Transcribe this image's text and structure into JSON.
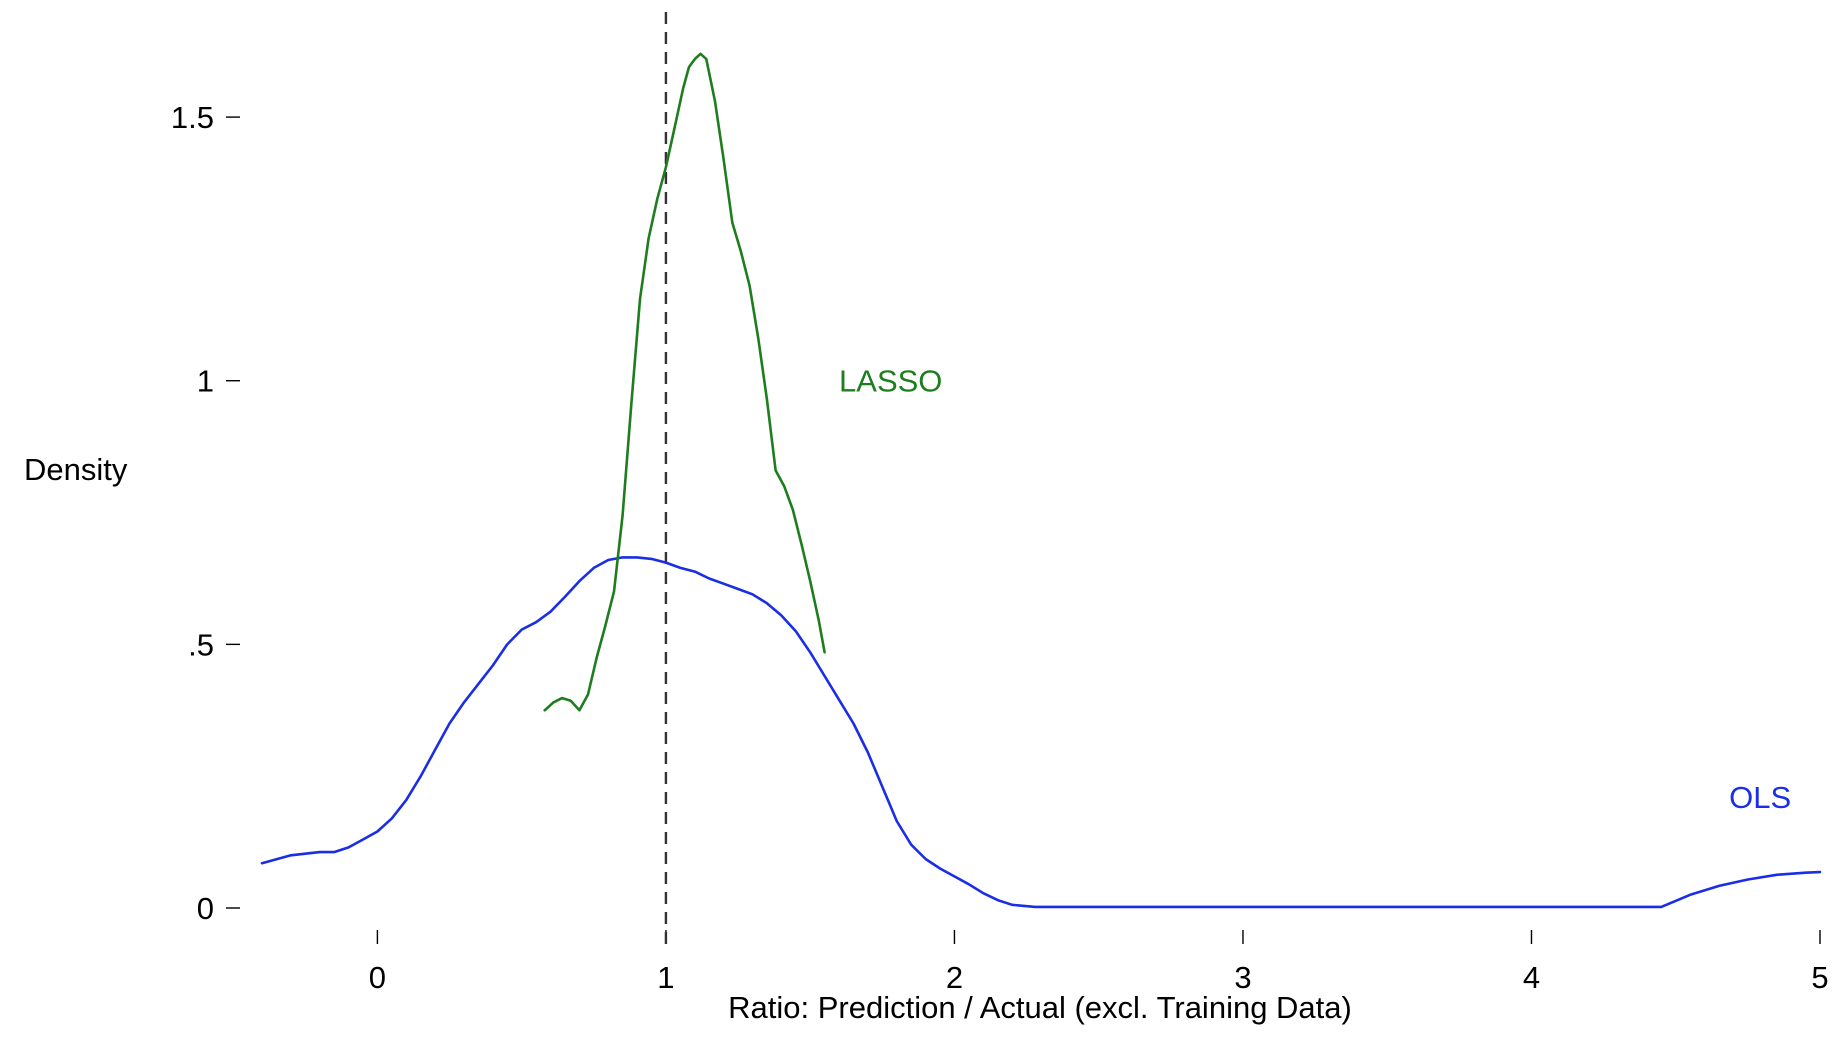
{
  "chart_data": {
    "type": "line",
    "title": "",
    "xlabel": "Ratio: Prediction / Actual (excl. Training Data)",
    "ylabel": "Density",
    "xlim": [
      -0.4,
      5
    ],
    "ylim": [
      0,
      1.65
    ],
    "grid": false,
    "legend": "none",
    "xticks": [
      {
        "value": 0,
        "label": "0"
      },
      {
        "value": 1,
        "label": "1"
      },
      {
        "value": 2,
        "label": "2"
      },
      {
        "value": 3,
        "label": "3"
      },
      {
        "value": 4,
        "label": "4"
      },
      {
        "value": 5,
        "label": "5"
      }
    ],
    "yticks": [
      {
        "value": 0,
        "label": "0"
      },
      {
        "value": 0.5,
        "label": ".5"
      },
      {
        "value": 1,
        "label": "1"
      },
      {
        "value": 1.5,
        "label": "1.5"
      }
    ],
    "reference_line": {
      "x": 1,
      "style": "dashed",
      "color": "#333333"
    },
    "series": [
      {
        "name": "OLS",
        "color": "#1a2ee6",
        "label_at": [
          4.9,
          0.19
        ],
        "points": [
          [
            -0.4,
            0.085
          ],
          [
            -0.3,
            0.1
          ],
          [
            -0.2,
            0.106
          ],
          [
            -0.15,
            0.106
          ],
          [
            -0.1,
            0.115
          ],
          [
            -0.05,
            0.13
          ],
          [
            0.0,
            0.145
          ],
          [
            0.05,
            0.17
          ],
          [
            0.1,
            0.205
          ],
          [
            0.15,
            0.25
          ],
          [
            0.2,
            0.3
          ],
          [
            0.25,
            0.35
          ],
          [
            0.3,
            0.39
          ],
          [
            0.35,
            0.425
          ],
          [
            0.4,
            0.46
          ],
          [
            0.45,
            0.5
          ],
          [
            0.5,
            0.528
          ],
          [
            0.55,
            0.542
          ],
          [
            0.6,
            0.562
          ],
          [
            0.65,
            0.59
          ],
          [
            0.7,
            0.62
          ],
          [
            0.75,
            0.645
          ],
          [
            0.8,
            0.66
          ],
          [
            0.85,
            0.665
          ],
          [
            0.9,
            0.665
          ],
          [
            0.95,
            0.662
          ],
          [
            1.0,
            0.655
          ],
          [
            1.05,
            0.645
          ],
          [
            1.1,
            0.638
          ],
          [
            1.15,
            0.625
          ],
          [
            1.2,
            0.615
          ],
          [
            1.25,
            0.605
          ],
          [
            1.3,
            0.595
          ],
          [
            1.35,
            0.578
          ],
          [
            1.4,
            0.555
          ],
          [
            1.45,
            0.525
          ],
          [
            1.5,
            0.485
          ],
          [
            1.55,
            0.44
          ],
          [
            1.6,
            0.395
          ],
          [
            1.65,
            0.35
          ],
          [
            1.7,
            0.295
          ],
          [
            1.75,
            0.23
          ],
          [
            1.8,
            0.165
          ],
          [
            1.85,
            0.12
          ],
          [
            1.9,
            0.093
          ],
          [
            1.95,
            0.075
          ],
          [
            2.0,
            0.06
          ],
          [
            2.05,
            0.045
          ],
          [
            2.1,
            0.028
          ],
          [
            2.15,
            0.015
          ],
          [
            2.2,
            0.006
          ],
          [
            2.28,
            0.002
          ],
          [
            2.5,
            0.002
          ],
          [
            3.0,
            0.002
          ],
          [
            3.5,
            0.002
          ],
          [
            4.0,
            0.002
          ],
          [
            4.3,
            0.002
          ],
          [
            4.45,
            0.002
          ],
          [
            4.55,
            0.025
          ],
          [
            4.65,
            0.042
          ],
          [
            4.75,
            0.054
          ],
          [
            4.85,
            0.063
          ],
          [
            4.95,
            0.067
          ],
          [
            5.0,
            0.068
          ]
        ]
      },
      {
        "name": "LASSO",
        "color": "#1e7d1e",
        "label_at": [
          1.6,
          0.98
        ],
        "points": [
          [
            0.58,
            0.375
          ],
          [
            0.61,
            0.39
          ],
          [
            0.64,
            0.398
          ],
          [
            0.67,
            0.393
          ],
          [
            0.7,
            0.375
          ],
          [
            0.73,
            0.405
          ],
          [
            0.76,
            0.475
          ],
          [
            0.79,
            0.535
          ],
          [
            0.82,
            0.6
          ],
          [
            0.85,
            0.745
          ],
          [
            0.88,
            0.955
          ],
          [
            0.91,
            1.155
          ],
          [
            0.94,
            1.27
          ],
          [
            0.97,
            1.345
          ],
          [
            1.0,
            1.405
          ],
          [
            1.03,
            1.48
          ],
          [
            1.06,
            1.555
          ],
          [
            1.08,
            1.595
          ],
          [
            1.1,
            1.61
          ],
          [
            1.12,
            1.62
          ],
          [
            1.14,
            1.61
          ],
          [
            1.17,
            1.53
          ],
          [
            1.2,
            1.42
          ],
          [
            1.23,
            1.3
          ],
          [
            1.26,
            1.245
          ],
          [
            1.29,
            1.18
          ],
          [
            1.32,
            1.08
          ],
          [
            1.35,
            0.965
          ],
          [
            1.38,
            0.83
          ],
          [
            1.41,
            0.8
          ],
          [
            1.44,
            0.755
          ],
          [
            1.47,
            0.69
          ],
          [
            1.5,
            0.62
          ],
          [
            1.53,
            0.545
          ],
          [
            1.55,
            0.485
          ]
        ]
      }
    ]
  }
}
